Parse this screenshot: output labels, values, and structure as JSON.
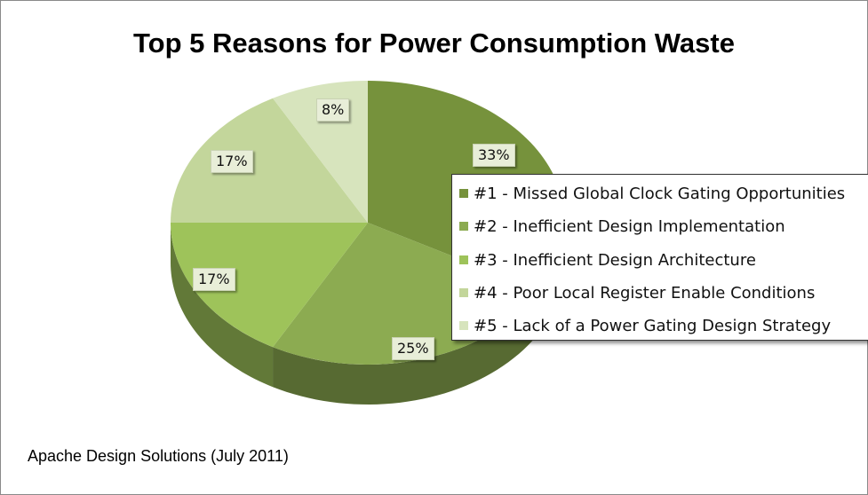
{
  "chart_data": {
    "type": "pie",
    "title": "Top 5 Reasons for Power Consumption Waste",
    "categories": [
      "#1 - Missed Global Clock Gating Opportunities",
      "#2 - Inefficient Design Implementation",
      "#3 - Inefficient Design Architecture",
      "#4 - Poor Local Register Enable Conditions",
      "#5 - Lack of a Power Gating Design Strategy"
    ],
    "values": [
      33,
      25,
      17,
      17,
      8
    ],
    "value_labels": [
      "33%",
      "25%",
      "17%",
      "17%",
      "8%"
    ],
    "colors": [
      "#76923c",
      "#8cab51",
      "#9ec35a",
      "#c3d69b",
      "#d7e4bd"
    ],
    "legend": "right",
    "style": "3d"
  },
  "source_note": "Apache Design Solutions (July 2011)"
}
